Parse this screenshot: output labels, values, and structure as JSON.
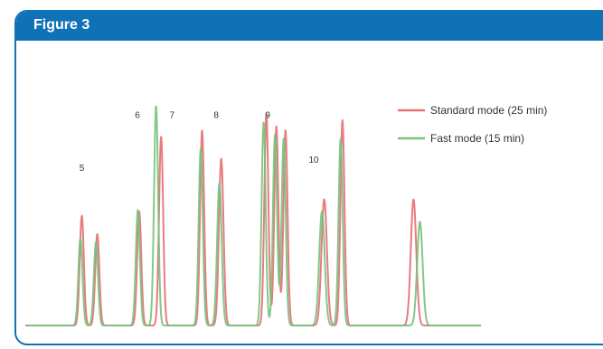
{
  "figure": {
    "title": "Figure 3"
  },
  "colors": {
    "frame": "#0f72b7",
    "standard_mode": "#e8747a",
    "fast_mode": "#77c27c"
  },
  "chart_data": {
    "type": "line",
    "title": "",
    "xlabel": "",
    "ylabel": "",
    "x_ticks": "none",
    "y_ticks": "none",
    "grid": false,
    "legend_position": "top-right",
    "xlim": [
      0,
      100
    ],
    "ylim": [
      0,
      100
    ],
    "peak_labels": [
      {
        "text": "5",
        "x": 12.4,
        "y": 76
      },
      {
        "text": "6",
        "x": 24.6,
        "y": 102
      },
      {
        "text": "7",
        "x": 32.2,
        "y": 102
      },
      {
        "text": "8",
        "x": 41.9,
        "y": 102
      },
      {
        "text": "9",
        "x": 53.2,
        "y": 102
      },
      {
        "text": "10",
        "x": 63.3,
        "y": 80
      }
    ],
    "series": [
      {
        "name": "Standard mode (25 min)",
        "color": "#e8747a",
        "baseline": 0,
        "peaks": [
          {
            "x": 12.4,
            "height": 54,
            "width": 0.45
          },
          {
            "x": 15.8,
            "height": 45,
            "width": 0.45
          },
          {
            "x": 25.0,
            "height": 56,
            "width": 0.45
          },
          {
            "x": 29.8,
            "height": 93,
            "width": 0.45
          },
          {
            "x": 38.8,
            "height": 96,
            "width": 0.45
          },
          {
            "x": 43.0,
            "height": 82,
            "width": 0.5
          },
          {
            "x": 52.9,
            "height": 104,
            "width": 0.45
          },
          {
            "x": 55.1,
            "height": 98,
            "width": 0.45
          },
          {
            "x": 57.1,
            "height": 96,
            "width": 0.45
          },
          {
            "x": 65.6,
            "height": 62,
            "width": 0.6
          },
          {
            "x": 69.6,
            "height": 101,
            "width": 0.45
          },
          {
            "x": 85.2,
            "height": 62,
            "width": 0.6
          }
        ]
      },
      {
        "name": "Fast mode (15 min)",
        "color": "#77c27c",
        "baseline": 0,
        "peaks": [
          {
            "x": 12.1,
            "height": 43,
            "width": 0.45
          },
          {
            "x": 15.5,
            "height": 41,
            "width": 0.45
          },
          {
            "x": 24.7,
            "height": 57,
            "width": 0.45
          },
          {
            "x": 28.7,
            "height": 108,
            "width": 0.45
          },
          {
            "x": 38.5,
            "height": 87,
            "width": 0.45
          },
          {
            "x": 42.6,
            "height": 70,
            "width": 0.5
          },
          {
            "x": 52.3,
            "height": 100,
            "width": 0.45
          },
          {
            "x": 54.8,
            "height": 94,
            "width": 0.45
          },
          {
            "x": 56.7,
            "height": 92,
            "width": 0.45
          },
          {
            "x": 65.1,
            "height": 56,
            "width": 0.6
          },
          {
            "x": 69.2,
            "height": 92,
            "width": 0.45
          },
          {
            "x": 86.6,
            "height": 51,
            "width": 0.6
          }
        ]
      }
    ]
  }
}
